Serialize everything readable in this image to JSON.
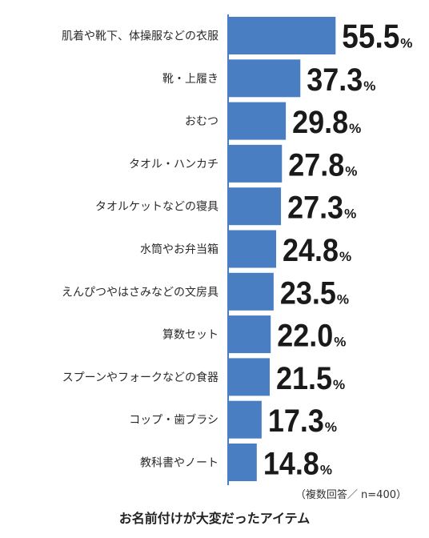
{
  "chart_data": {
    "type": "bar",
    "orientation": "horizontal",
    "categories": [
      "肌着や靴下、体操服などの衣服",
      "靴・上履き",
      "おむつ",
      "タオル・ハンカチ",
      "タオルケットなどの寝具",
      "水筒やお弁当箱",
      "えんぴつやはさみなどの文房具",
      "算数セット",
      "スプーンやフォークなどの食器",
      "コップ・歯ブラシ",
      "教科書やノート"
    ],
    "values": [
      55.5,
      37.3,
      29.8,
      27.8,
      27.3,
      24.8,
      23.5,
      22.0,
      21.5,
      17.3,
      14.8
    ],
    "value_labels": [
      "55.5",
      "37.3",
      "29.8",
      "27.8",
      "27.3",
      "24.8",
      "23.5",
      "22.0",
      "21.5",
      "17.3",
      "14.8"
    ],
    "unit": "%",
    "title": "お名前付けが大変だったアイテム",
    "note": "（複数回答／ n=400）",
    "bar_color": "#4a7ec2",
    "grid": false
  }
}
